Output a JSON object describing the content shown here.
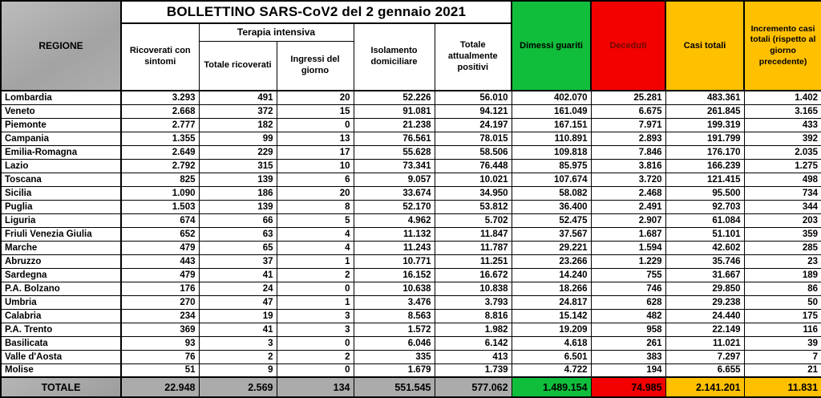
{
  "header": {
    "title": "BOLLETTINO SARS-CoV2 del 2 gennaio 2021",
    "region_column": "REGIONE",
    "terapia_group": "Terapia intensiva",
    "columns": [
      "Ricoverati con sintomi",
      "Totale ricoverati",
      "Ingressi del giorno",
      "Isolamento domiciliare",
      "Totale attualmente positivi",
      "Dimessi guariti",
      "Deceduti",
      "Casi totali",
      "Incremento casi totali (rispetto al giorno precedente)"
    ]
  },
  "colors": {
    "dimessi_guariti_green": "#10be3c",
    "deceduti_red": "#f30000",
    "casi_totali_amber": "#ffc000",
    "region_header_gray": "#a9a9a9"
  },
  "rows": [
    {
      "region": "Lombardia",
      "values": [
        "3.293",
        "491",
        "20",
        "52.226",
        "56.010",
        "402.070",
        "25.281",
        "483.361",
        "1.402"
      ]
    },
    {
      "region": "Veneto",
      "values": [
        "2.668",
        "372",
        "15",
        "91.081",
        "94.121",
        "161.049",
        "6.675",
        "261.845",
        "3.165"
      ]
    },
    {
      "region": "Piemonte",
      "values": [
        "2.777",
        "182",
        "0",
        "21.238",
        "24.197",
        "167.151",
        "7.971",
        "199.319",
        "433"
      ]
    },
    {
      "region": "Campania",
      "values": [
        "1.355",
        "99",
        "13",
        "76.561",
        "78.015",
        "110.891",
        "2.893",
        "191.799",
        "392"
      ]
    },
    {
      "region": "Emilia-Romagna",
      "values": [
        "2.649",
        "229",
        "17",
        "55.628",
        "58.506",
        "109.818",
        "7.846",
        "176.170",
        "2.035"
      ]
    },
    {
      "region": "Lazio",
      "values": [
        "2.792",
        "315",
        "10",
        "73.341",
        "76.448",
        "85.975",
        "3.816",
        "166.239",
        "1.275"
      ]
    },
    {
      "region": "Toscana",
      "values": [
        "825",
        "139",
        "6",
        "9.057",
        "10.021",
        "107.674",
        "3.720",
        "121.415",
        "498"
      ]
    },
    {
      "region": "Sicilia",
      "values": [
        "1.090",
        "186",
        "20",
        "33.674",
        "34.950",
        "58.082",
        "2.468",
        "95.500",
        "734"
      ]
    },
    {
      "region": "Puglia",
      "values": [
        "1.503",
        "139",
        "8",
        "52.170",
        "53.812",
        "36.400",
        "2.491",
        "92.703",
        "344"
      ]
    },
    {
      "region": "Liguria",
      "values": [
        "674",
        "66",
        "5",
        "4.962",
        "5.702",
        "52.475",
        "2.907",
        "61.084",
        "203"
      ]
    },
    {
      "region": "Friuli Venezia Giulia",
      "values": [
        "652",
        "63",
        "4",
        "11.132",
        "11.847",
        "37.567",
        "1.687",
        "51.101",
        "359"
      ]
    },
    {
      "region": "Marche",
      "values": [
        "479",
        "65",
        "4",
        "11.243",
        "11.787",
        "29.221",
        "1.594",
        "42.602",
        "285"
      ]
    },
    {
      "region": "Abruzzo",
      "values": [
        "443",
        "37",
        "1",
        "10.771",
        "11.251",
        "23.266",
        "1.229",
        "35.746",
        "23"
      ]
    },
    {
      "region": "Sardegna",
      "values": [
        "479",
        "41",
        "2",
        "16.152",
        "16.672",
        "14.240",
        "755",
        "31.667",
        "189"
      ]
    },
    {
      "region": "P.A. Bolzano",
      "values": [
        "176",
        "24",
        "0",
        "10.638",
        "10.838",
        "18.266",
        "746",
        "29.850",
        "86"
      ]
    },
    {
      "region": "Umbria",
      "values": [
        "270",
        "47",
        "1",
        "3.476",
        "3.793",
        "24.817",
        "628",
        "29.238",
        "50"
      ]
    },
    {
      "region": "Calabria",
      "values": [
        "234",
        "19",
        "3",
        "8.563",
        "8.816",
        "15.142",
        "482",
        "24.440",
        "175"
      ]
    },
    {
      "region": "P.A. Trento",
      "values": [
        "369",
        "41",
        "3",
        "1.572",
        "1.982",
        "19.209",
        "958",
        "22.149",
        "116"
      ]
    },
    {
      "region": "Basilicata",
      "values": [
        "93",
        "3",
        "0",
        "6.046",
        "6.142",
        "4.618",
        "261",
        "11.021",
        "39"
      ]
    },
    {
      "region": "Valle d'Aosta",
      "values": [
        "76",
        "2",
        "2",
        "335",
        "413",
        "6.501",
        "383",
        "7.297",
        "7"
      ]
    },
    {
      "region": "Molise",
      "values": [
        "51",
        "9",
        "0",
        "1.679",
        "1.739",
        "4.722",
        "194",
        "6.655",
        "21"
      ]
    }
  ],
  "total": {
    "label": "TOTALE",
    "values": [
      "22.948",
      "2.569",
      "134",
      "551.545",
      "577.062",
      "1.489.154",
      "74.985",
      "2.141.201",
      "11.831"
    ]
  }
}
